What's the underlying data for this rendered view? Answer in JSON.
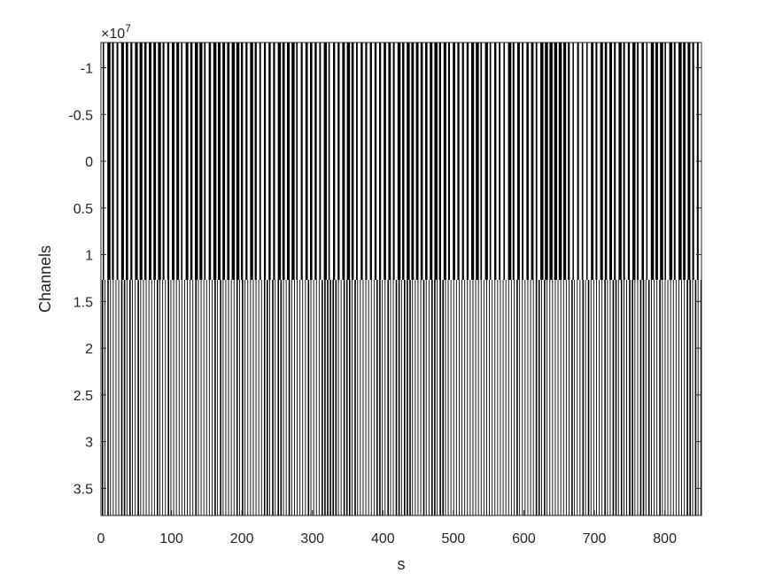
{
  "chart_data": {
    "type": "line",
    "title": "",
    "xlabel": "s",
    "ylabel": "Channels",
    "xlim": [
      0,
      852
    ],
    "ylim": [
      -12700000.0,
      37900000.0
    ],
    "y_reversed": true,
    "y_exponent_label": "×10",
    "y_exponent": "7",
    "xticks": [
      "0",
      "100",
      "200",
      "300",
      "400",
      "500",
      "600",
      "700",
      "800"
    ],
    "xtick_values": [
      0,
      100,
      200,
      300,
      400,
      500,
      600,
      700,
      800
    ],
    "yticks": [
      "-1",
      "-0.5",
      "0",
      "0.5",
      "1",
      "1.5",
      "2",
      "2.5",
      "3",
      "3.5"
    ],
    "ytick_values": [
      -10000000.0,
      -5000000.0,
      0,
      5000000.0,
      10000000.0,
      15000000.0,
      20000000.0,
      25000000.0,
      30000000.0,
      35000000.0
    ],
    "regions": [
      {
        "y_range": [
          -12700000.0,
          12700000.0
        ],
        "style": "dense thick vertical lines"
      },
      {
        "y_range": [
          12700000.0,
          37900000.0
        ],
        "style": "thin vertical lines"
      }
    ],
    "line_color": "#000000",
    "grid": false
  }
}
